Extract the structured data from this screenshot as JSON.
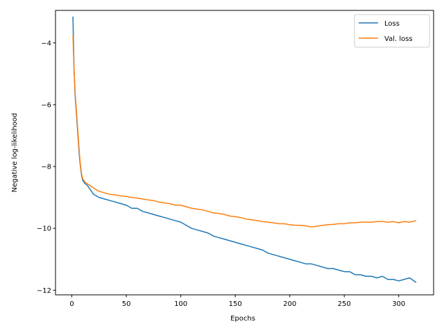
{
  "chart_data": {
    "type": "line",
    "title": "",
    "xlabel": "Epochs",
    "ylabel": "Negative log-likelihood",
    "xlim": [
      -15,
      332
    ],
    "ylim": [
      -12.15,
      -2.95
    ],
    "xticks": [
      0,
      50,
      100,
      150,
      200,
      250,
      300
    ],
    "yticks": [
      -12,
      -10,
      -8,
      -6,
      -4
    ],
    "grid": false,
    "legend_position": "top-right",
    "series": [
      {
        "name": "Loss",
        "color": "#1f77b4",
        "x": [
          1,
          2,
          3,
          4,
          5,
          6,
          7,
          8,
          9,
          10,
          12,
          14,
          16,
          18,
          20,
          25,
          30,
          35,
          40,
          45,
          50,
          55,
          60,
          65,
          70,
          75,
          80,
          85,
          90,
          95,
          100,
          105,
          110,
          115,
          120,
          125,
          130,
          135,
          140,
          145,
          150,
          155,
          160,
          165,
          170,
          175,
          180,
          185,
          190,
          195,
          200,
          205,
          210,
          215,
          220,
          225,
          230,
          235,
          240,
          245,
          250,
          255,
          260,
          265,
          270,
          275,
          280,
          285,
          290,
          295,
          300,
          305,
          310,
          316
        ],
        "y": [
          -3.15,
          -4.8,
          -5.7,
          -6.2,
          -6.7,
          -7.2,
          -7.7,
          -8.05,
          -8.3,
          -8.45,
          -8.55,
          -8.6,
          -8.7,
          -8.8,
          -8.9,
          -9.0,
          -9.05,
          -9.1,
          -9.15,
          -9.2,
          -9.25,
          -9.35,
          -9.35,
          -9.45,
          -9.5,
          -9.55,
          -9.6,
          -9.65,
          -9.7,
          -9.75,
          -9.8,
          -9.9,
          -10.0,
          -10.05,
          -10.1,
          -10.15,
          -10.25,
          -10.3,
          -10.35,
          -10.4,
          -10.45,
          -10.5,
          -10.55,
          -10.6,
          -10.65,
          -10.7,
          -10.8,
          -10.85,
          -10.9,
          -10.95,
          -11.0,
          -11.05,
          -11.1,
          -11.15,
          -11.15,
          -11.2,
          -11.25,
          -11.3,
          -11.3,
          -11.35,
          -11.4,
          -11.4,
          -11.5,
          -11.5,
          -11.55,
          -11.55,
          -11.6,
          -11.55,
          -11.65,
          -11.65,
          -11.7,
          -11.65,
          -11.6,
          -11.75
        ]
      },
      {
        "name": "Val. loss",
        "color": "#ff7f0e",
        "x": [
          1,
          2,
          3,
          4,
          5,
          6,
          7,
          8,
          9,
          10,
          12,
          14,
          16,
          18,
          20,
          25,
          30,
          35,
          40,
          45,
          50,
          55,
          60,
          65,
          70,
          75,
          80,
          85,
          90,
          95,
          100,
          105,
          110,
          115,
          120,
          125,
          130,
          135,
          140,
          145,
          150,
          155,
          160,
          165,
          170,
          175,
          180,
          185,
          190,
          195,
          200,
          205,
          210,
          215,
          220,
          225,
          230,
          235,
          240,
          245,
          250,
          255,
          260,
          265,
          270,
          275,
          280,
          285,
          290,
          295,
          300,
          305,
          310,
          316
        ],
        "y": [
          -3.75,
          -4.85,
          -5.6,
          -6.1,
          -6.6,
          -7.1,
          -7.6,
          -8.0,
          -8.25,
          -8.4,
          -8.5,
          -8.55,
          -8.6,
          -8.65,
          -8.7,
          -8.8,
          -8.85,
          -8.9,
          -8.92,
          -8.95,
          -8.97,
          -9.0,
          -9.02,
          -9.05,
          -9.08,
          -9.1,
          -9.15,
          -9.18,
          -9.2,
          -9.25,
          -9.25,
          -9.3,
          -9.35,
          -9.38,
          -9.4,
          -9.45,
          -9.5,
          -9.52,
          -9.55,
          -9.6,
          -9.62,
          -9.65,
          -9.7,
          -9.72,
          -9.75,
          -9.78,
          -9.8,
          -9.82,
          -9.85,
          -9.85,
          -9.88,
          -9.9,
          -9.9,
          -9.92,
          -9.95,
          -9.93,
          -9.9,
          -9.88,
          -9.87,
          -9.85,
          -9.85,
          -9.82,
          -9.82,
          -9.8,
          -9.8,
          -9.8,
          -9.78,
          -9.78,
          -9.8,
          -9.78,
          -9.82,
          -9.78,
          -9.8,
          -9.75
        ]
      }
    ]
  }
}
